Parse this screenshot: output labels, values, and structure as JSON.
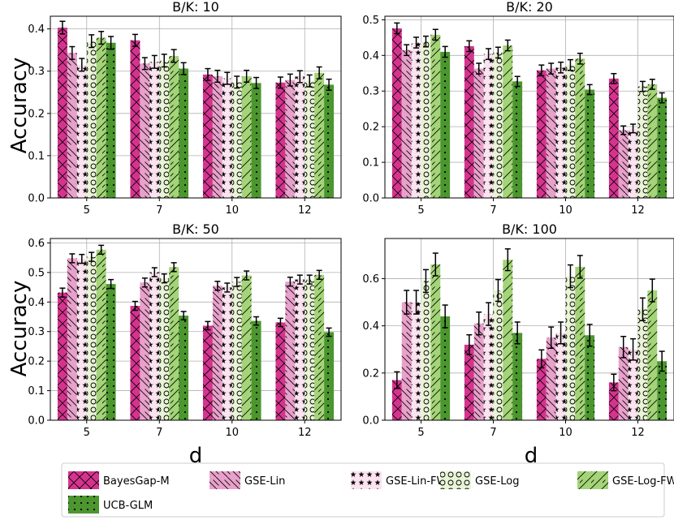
{
  "figure": {
    "xlabel": "d",
    "ylabel": "Accuracy"
  },
  "series_styles": [
    {
      "name": "BayesGap-M",
      "color": "#d6338f",
      "pattern": "crosshatch-x"
    },
    {
      "name": "GSE-Lin",
      "color": "#e8a1cb",
      "pattern": "back-diagonal"
    },
    {
      "name": "GSE-Lin-FWG",
      "color": "#fbe3ef",
      "pattern": "stars"
    },
    {
      "name": "GSE-Log",
      "color": "#e9f4d6",
      "pattern": "circles"
    },
    {
      "name": "GSE-Log-FWG",
      "color": "#a3d477",
      "pattern": "forward-diagonal"
    },
    {
      "name": "UCB-GLM",
      "color": "#4c962f",
      "pattern": "dots"
    }
  ],
  "chart_data": [
    {
      "type": "bar",
      "title": "B/K: 10",
      "categories": [
        "5",
        "7",
        "10",
        "12"
      ],
      "ylim": [
        0,
        0.43
      ],
      "yticks": [
        0.0,
        0.1,
        0.2,
        0.3,
        0.4
      ],
      "ytick_labels": [
        "0.0",
        "0.1",
        "0.2",
        "0.3",
        "0.4"
      ],
      "series": [
        {
          "name": "BayesGap-M",
          "values": [
            0.403,
            0.373,
            0.292,
            0.273
          ],
          "errors": [
            0.015,
            0.014,
            0.014,
            0.013
          ]
        },
        {
          "name": "GSE-Lin",
          "values": [
            0.343,
            0.318,
            0.288,
            0.279
          ],
          "errors": [
            0.015,
            0.014,
            0.014,
            0.014
          ]
        },
        {
          "name": "GSE-Lin-FWG",
          "values": [
            0.315,
            0.322,
            0.283,
            0.287
          ],
          "errors": [
            0.015,
            0.015,
            0.014,
            0.014
          ]
        },
        {
          "name": "GSE-Log",
          "values": [
            0.371,
            0.325,
            0.274,
            0.277
          ],
          "errors": [
            0.015,
            0.015,
            0.014,
            0.014
          ]
        },
        {
          "name": "GSE-Log-FWG",
          "values": [
            0.379,
            0.336,
            0.288,
            0.296
          ],
          "errors": [
            0.015,
            0.015,
            0.014,
            0.014
          ]
        },
        {
          "name": "UCB-GLM",
          "values": [
            0.367,
            0.306,
            0.272,
            0.268
          ],
          "errors": [
            0.015,
            0.014,
            0.013,
            0.013
          ]
        }
      ]
    },
    {
      "type": "bar",
      "title": "B/K: 20",
      "categories": [
        "5",
        "7",
        "10",
        "12"
      ],
      "ylim": [
        0,
        0.51
      ],
      "yticks": [
        0.0,
        0.1,
        0.2,
        0.3,
        0.4,
        0.5
      ],
      "ytick_labels": [
        "0.0",
        "0.1",
        "0.2",
        "0.3",
        "0.4",
        "0.5"
      ],
      "series": [
        {
          "name": "BayesGap-M",
          "values": [
            0.476,
            0.426,
            0.358,
            0.335
          ],
          "errors": [
            0.015,
            0.015,
            0.015,
            0.014
          ]
        },
        {
          "name": "GSE-Lin",
          "values": [
            0.415,
            0.363,
            0.363,
            0.19
          ],
          "errors": [
            0.015,
            0.015,
            0.015,
            0.012
          ]
        },
        {
          "name": "GSE-Lin-FWG",
          "values": [
            0.436,
            0.404,
            0.366,
            0.195
          ],
          "errors": [
            0.015,
            0.015,
            0.015,
            0.012
          ]
        },
        {
          "name": "GSE-Log",
          "values": [
            0.439,
            0.408,
            0.373,
            0.313
          ],
          "errors": [
            0.015,
            0.015,
            0.015,
            0.014
          ]
        },
        {
          "name": "GSE-Log-FWG",
          "values": [
            0.458,
            0.428,
            0.391,
            0.319
          ],
          "errors": [
            0.015,
            0.015,
            0.015,
            0.014
          ]
        },
        {
          "name": "UCB-GLM",
          "values": [
            0.41,
            0.327,
            0.304,
            0.281
          ],
          "errors": [
            0.015,
            0.014,
            0.014,
            0.014
          ]
        }
      ]
    },
    {
      "type": "bar",
      "title": "B/K: 50",
      "categories": [
        "5",
        "7",
        "10",
        "12"
      ],
      "ylim": [
        0,
        0.615
      ],
      "yticks": [
        0.0,
        0.1,
        0.2,
        0.3,
        0.4,
        0.5,
        0.6
      ],
      "ytick_labels": [
        "0.0",
        "0.1",
        "0.2",
        "0.3",
        "0.4",
        "0.5",
        "0.6"
      ],
      "series": [
        {
          "name": "BayesGap-M",
          "values": [
            0.432,
            0.387,
            0.32,
            0.331
          ],
          "errors": [
            0.015,
            0.015,
            0.014,
            0.014
          ]
        },
        {
          "name": "GSE-Lin",
          "values": [
            0.548,
            0.466,
            0.455,
            0.469
          ],
          "errors": [
            0.015,
            0.015,
            0.015,
            0.015
          ]
        },
        {
          "name": "GSE-Lin-FWG",
          "values": [
            0.546,
            0.501,
            0.449,
            0.476
          ],
          "errors": [
            0.015,
            0.015,
            0.015,
            0.015
          ]
        },
        {
          "name": "GSE-Log",
          "values": [
            0.553,
            0.48,
            0.468,
            0.476
          ],
          "errors": [
            0.015,
            0.015,
            0.015,
            0.015
          ]
        },
        {
          "name": "GSE-Log-FWG",
          "values": [
            0.577,
            0.518,
            0.49,
            0.492
          ],
          "errors": [
            0.015,
            0.015,
            0.015,
            0.015
          ]
        },
        {
          "name": "UCB-GLM",
          "values": [
            0.461,
            0.354,
            0.336,
            0.298
          ],
          "errors": [
            0.015,
            0.014,
            0.014,
            0.014
          ]
        }
      ]
    },
    {
      "type": "bar",
      "title": "B/K: 100",
      "categories": [
        "5",
        "7",
        "10",
        "12"
      ],
      "ylim": [
        0,
        0.77
      ],
      "yticks": [
        0.0,
        0.2,
        0.4,
        0.6
      ],
      "ytick_labels": [
        "0.0",
        "0.2",
        "0.4",
        "0.6"
      ],
      "series": [
        {
          "name": "BayesGap-M",
          "values": [
            0.17,
            0.32,
            0.26,
            0.16
          ],
          "errors": [
            0.035,
            0.042,
            0.038,
            0.035
          ]
        },
        {
          "name": "GSE-Lin",
          "values": [
            0.5,
            0.41,
            0.35,
            0.31
          ],
          "errors": [
            0.05,
            0.048,
            0.045,
            0.045
          ]
        },
        {
          "name": "GSE-Lin-FWG",
          "values": [
            0.5,
            0.45,
            0.37,
            0.3
          ],
          "errors": [
            0.05,
            0.048,
            0.046,
            0.045
          ]
        },
        {
          "name": "GSE-Log",
          "values": [
            0.59,
            0.55,
            0.61,
            0.47
          ],
          "errors": [
            0.048,
            0.046,
            0.048,
            0.048
          ]
        },
        {
          "name": "GSE-Log-FWG",
          "values": [
            0.66,
            0.68,
            0.65,
            0.55
          ],
          "errors": [
            0.048,
            0.046,
            0.048,
            0.048
          ]
        },
        {
          "name": "UCB-GLM",
          "values": [
            0.44,
            0.37,
            0.36,
            0.25
          ],
          "errors": [
            0.048,
            0.046,
            0.046,
            0.042
          ]
        }
      ]
    }
  ]
}
